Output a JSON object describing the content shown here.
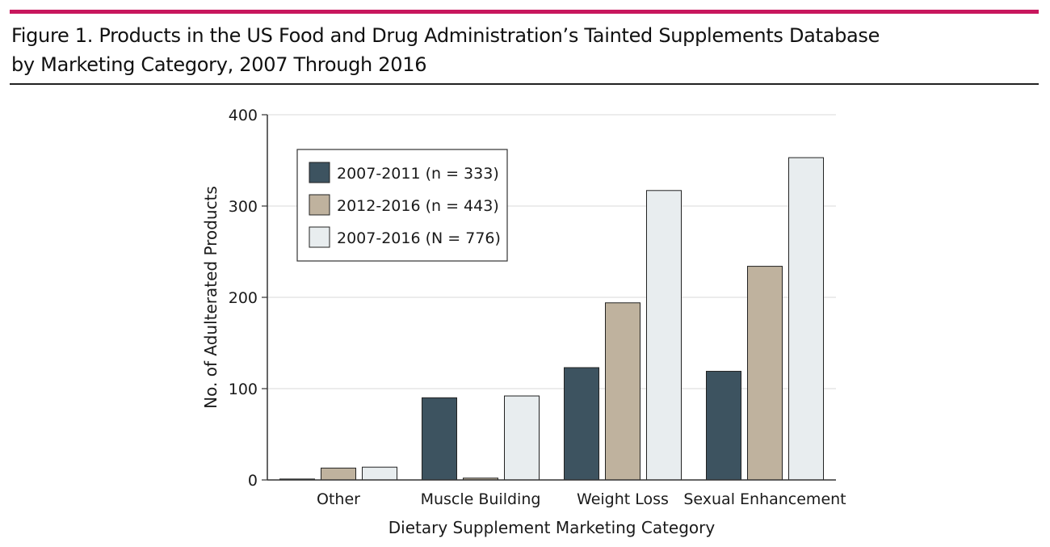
{
  "figure": {
    "title_line1": "Figure 1. Products in the US Food and Drug Administration’s Tainted Supplements Database",
    "title_line2": "by Marketing Category, 2007 Through 2016",
    "accent_color": "#c8175d"
  },
  "chart_data": {
    "type": "bar",
    "title": "",
    "xlabel": "Dietary Supplement Marketing Category",
    "ylabel": "No. of Adulterated Products",
    "ylim": [
      0,
      400
    ],
    "yticks": [
      0,
      100,
      200,
      300,
      400
    ],
    "grid": true,
    "legend_position": "top-left",
    "categories": [
      "Other",
      "Muscle Building",
      "Weight Loss",
      "Sexual Enhancement"
    ],
    "series": [
      {
        "name": "2007-2011 (n = 333)",
        "color": "#3d5360",
        "values": [
          1,
          90,
          123,
          119
        ]
      },
      {
        "name": "2012-2016 (n = 443)",
        "color": "#bfb29e",
        "values": [
          13,
          2,
          194,
          234
        ]
      },
      {
        "name": "2007-2016 (N = 776)",
        "color": "#e8edef",
        "values": [
          14,
          92,
          317,
          353
        ]
      }
    ]
  }
}
